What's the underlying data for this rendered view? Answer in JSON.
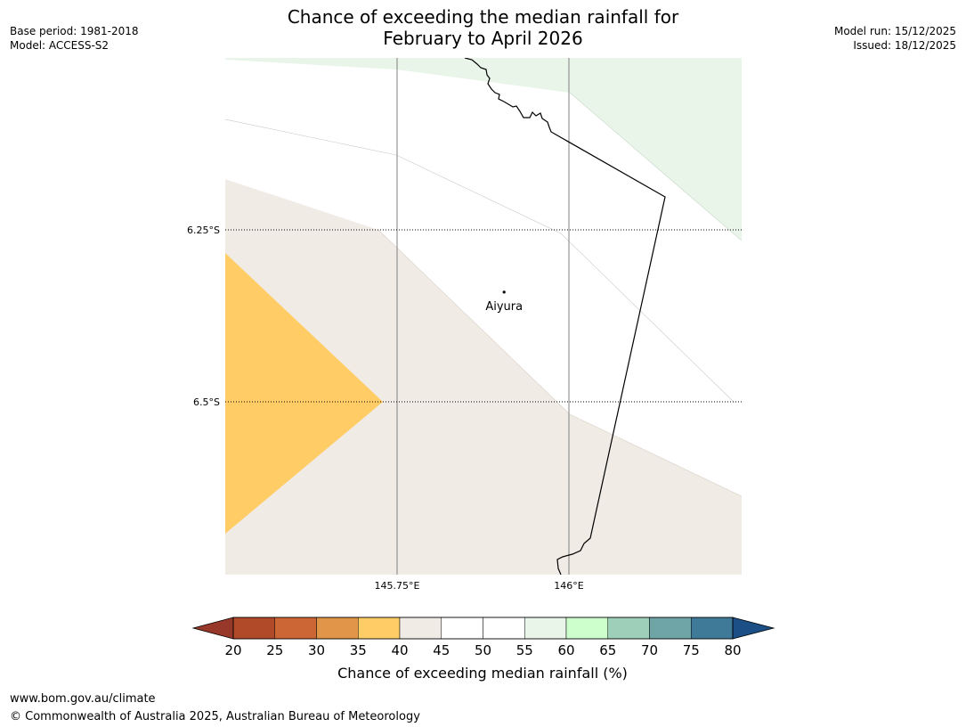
{
  "title": {
    "line1": "Chance of exceeding the median rainfall for",
    "line2": "February to April 2026"
  },
  "meta": {
    "base_period": "Base period: 1981-2018",
    "model": "Model: ACCESS-S2",
    "model_run": "Model run: 15/12/2025",
    "issued": "Issued: 18/12/2025"
  },
  "map": {
    "lat_labels": [
      "6.25°S",
      "6.5°S"
    ],
    "lon_labels": [
      "145.75°E",
      "146°E"
    ],
    "place": {
      "name": "Aiyura",
      "lon": 145.905,
      "lat": -6.34
    },
    "bounds": {
      "lon_min": 145.5,
      "lon_max": 146.25,
      "lat_min": -6.75,
      "lat_max": -6.0
    }
  },
  "colorbar": {
    "label": "Chance of exceeding median rainfall (%)",
    "ticks": [
      "20",
      "25",
      "30",
      "35",
      "40",
      "45",
      "50",
      "55",
      "60",
      "65",
      "70",
      "75",
      "80"
    ],
    "under_color": "#98382a",
    "over_color": "#1c4f86",
    "colors": [
      "#b04a29",
      "#cc6634",
      "#e09548",
      "#ffcc66",
      "#f0ebe4",
      "#ffffff",
      "#ffffff",
      "#eaf5ea",
      "#ccffcc",
      "#9ecfb8",
      "#6fa5a6",
      "#3f7a99"
    ]
  },
  "footer": {
    "url": "www.bom.gov.au/climate",
    "copyright": "© Commonwealth of Australia 2025, Australian Bureau of Meteorology"
  }
}
